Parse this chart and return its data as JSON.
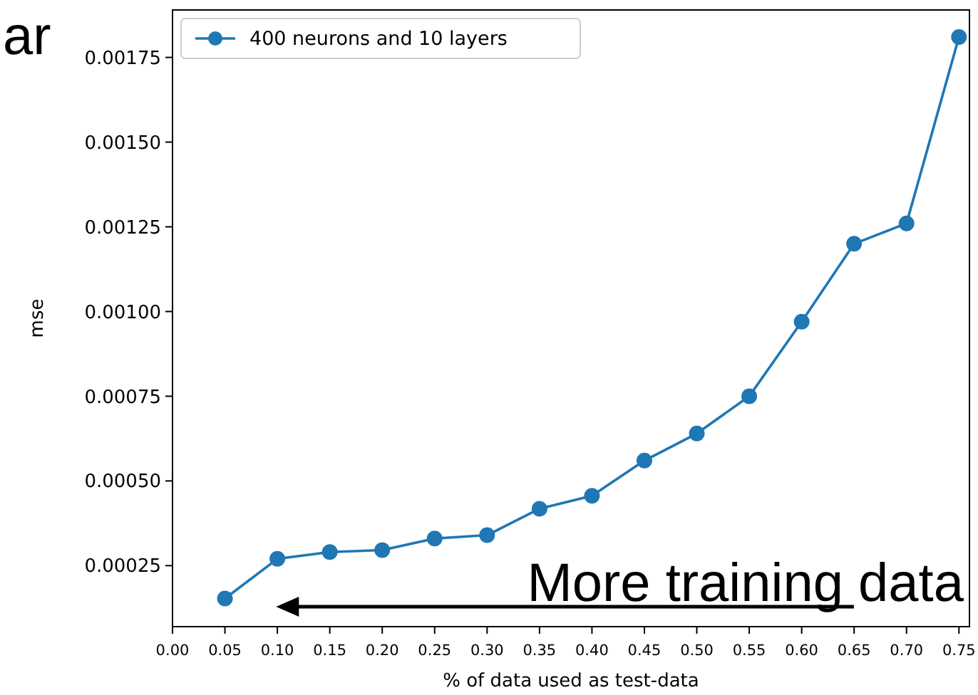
{
  "chart_data": {
    "type": "line",
    "xlabel": "% of data used as test-data",
    "ylabel": "mse",
    "x": [
      0.05,
      0.1,
      0.15,
      0.2,
      0.25,
      0.3,
      0.35,
      0.4,
      0.45,
      0.5,
      0.55,
      0.6,
      0.65,
      0.7,
      0.75
    ],
    "series": [
      {
        "name": "400 neurons and 10 layers",
        "color": "#1f77b4",
        "values": [
          0.000153,
          0.00027,
          0.00029,
          0.000296,
          0.00033,
          0.00034,
          0.000418,
          0.000456,
          0.00056,
          0.00064,
          0.00075,
          0.00097,
          0.0012,
          0.00126,
          0.00181
        ]
      }
    ],
    "xlim": [
      0,
      0.76
    ],
    "xticks": [
      {
        "value": 0,
        "label": "0.00"
      },
      {
        "value": 0.05,
        "label": "0.05"
      },
      {
        "value": 0.1,
        "label": "0.10"
      },
      {
        "value": 0.15,
        "label": "0.15"
      },
      {
        "value": 0.2,
        "label": "0.20"
      },
      {
        "value": 0.25,
        "label": "0.25"
      },
      {
        "value": 0.3,
        "label": "0.30"
      },
      {
        "value": 0.35,
        "label": "0.35"
      },
      {
        "value": 0.4,
        "label": "0.40"
      },
      {
        "value": 0.45,
        "label": "0.45"
      },
      {
        "value": 0.5,
        "label": "0.50"
      },
      {
        "value": 0.55,
        "label": "0.55"
      },
      {
        "value": 0.6,
        "label": "0.60"
      },
      {
        "value": 0.65,
        "label": "0.65"
      },
      {
        "value": 0.7,
        "label": "0.70"
      },
      {
        "value": 0.75,
        "label": "0.75"
      }
    ],
    "ylim": [
      7e-05,
      0.00189
    ],
    "yticks": [
      0.00025,
      {
        "value": 0.0005,
        "label": "0.00050"
      },
      0.00075,
      {
        "value": 0.001,
        "label": "0.00100"
      },
      0.00125,
      {
        "value": 0.0015,
        "label": "0.00150"
      },
      0.00175
    ],
    "marker": "circle",
    "legend": "top left",
    "grid": false,
    "annotations": [
      "ar",
      "More training data"
    ]
  }
}
